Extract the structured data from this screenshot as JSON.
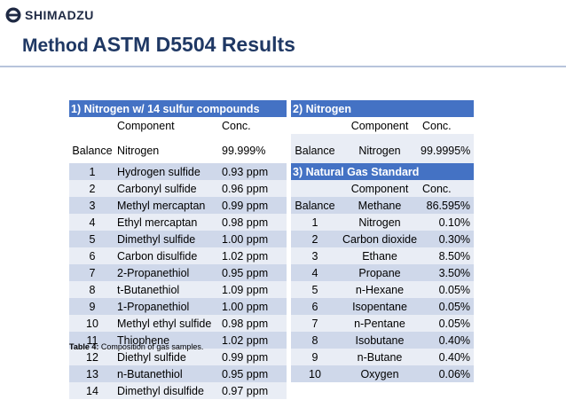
{
  "brand": {
    "name": "SHIMADZU"
  },
  "title": {
    "part1": "Method",
    "part2": "ASTM D5504 Results"
  },
  "table1": {
    "header": "1) Nitrogen w/ 14 sulfur compounds",
    "col_component": "Component",
    "col_conc": "Conc.",
    "rows": [
      [
        "Balance",
        "Nitrogen",
        "99.999%"
      ],
      [
        "1",
        "Hydrogen sulfide",
        "0.93 ppm"
      ],
      [
        "2",
        "Carbonyl sulfide",
        "0.96 ppm"
      ],
      [
        "3",
        "Methyl mercaptan",
        "0.99 ppm"
      ],
      [
        "4",
        "Ethyl mercaptan",
        "0.98 ppm"
      ],
      [
        "5",
        "Dimethyl sulfide",
        "1.00 ppm"
      ],
      [
        "6",
        "Carbon disulfide",
        "1.02 ppm"
      ],
      [
        "7",
        "2-Propanethiol",
        "0.95 ppm"
      ],
      [
        "8",
        "t-Butanethiol",
        "1.09 ppm"
      ],
      [
        "9",
        "1-Propanethiol",
        "1.00 ppm"
      ],
      [
        "10",
        "Methyl ethyl sulfide",
        "0.98 ppm"
      ],
      [
        "11",
        "Thiophene",
        "1.02 ppm"
      ],
      [
        "12",
        "Diethyl sulfide",
        "0.99 ppm"
      ],
      [
        "13",
        "n-Butanethiol",
        "0.95 ppm"
      ],
      [
        "14",
        "Dimethyl disulfide",
        "0.97 ppm"
      ]
    ]
  },
  "table2": {
    "header": "2) Nitrogen",
    "col_component": "Component",
    "col_conc": "Conc.",
    "row": [
      "Balance",
      "Nitrogen",
      "99.9995%"
    ]
  },
  "table3": {
    "header": "3) Natural Gas Standard",
    "col_component": "Component",
    "col_conc": "Conc.",
    "rows": [
      [
        "Balance",
        "Methane",
        "86.595%"
      ],
      [
        "1",
        "Nitrogen",
        "0.10%"
      ],
      [
        "2",
        "Carbon dioxide",
        "0.30%"
      ],
      [
        "3",
        "Ethane",
        "8.50%"
      ],
      [
        "4",
        "Propane",
        "3.50%"
      ],
      [
        "5",
        "n-Hexane",
        "0.05%"
      ],
      [
        "6",
        "Isopentane",
        "0.05%"
      ],
      [
        "7",
        "n-Pentane",
        "0.05%"
      ],
      [
        "8",
        "Isobutane",
        "0.40%"
      ],
      [
        "9",
        "n-Butane",
        "0.40%"
      ],
      [
        "10",
        "Oxygen",
        "0.06%"
      ]
    ]
  },
  "caption": {
    "label": "Table 4:",
    "text": "Composition of gas samples."
  },
  "colors": {
    "title": "#1f3864",
    "header_bg": "#4472c4",
    "row_dark": "#cfd8ea",
    "row_light": "#e9edf5"
  }
}
